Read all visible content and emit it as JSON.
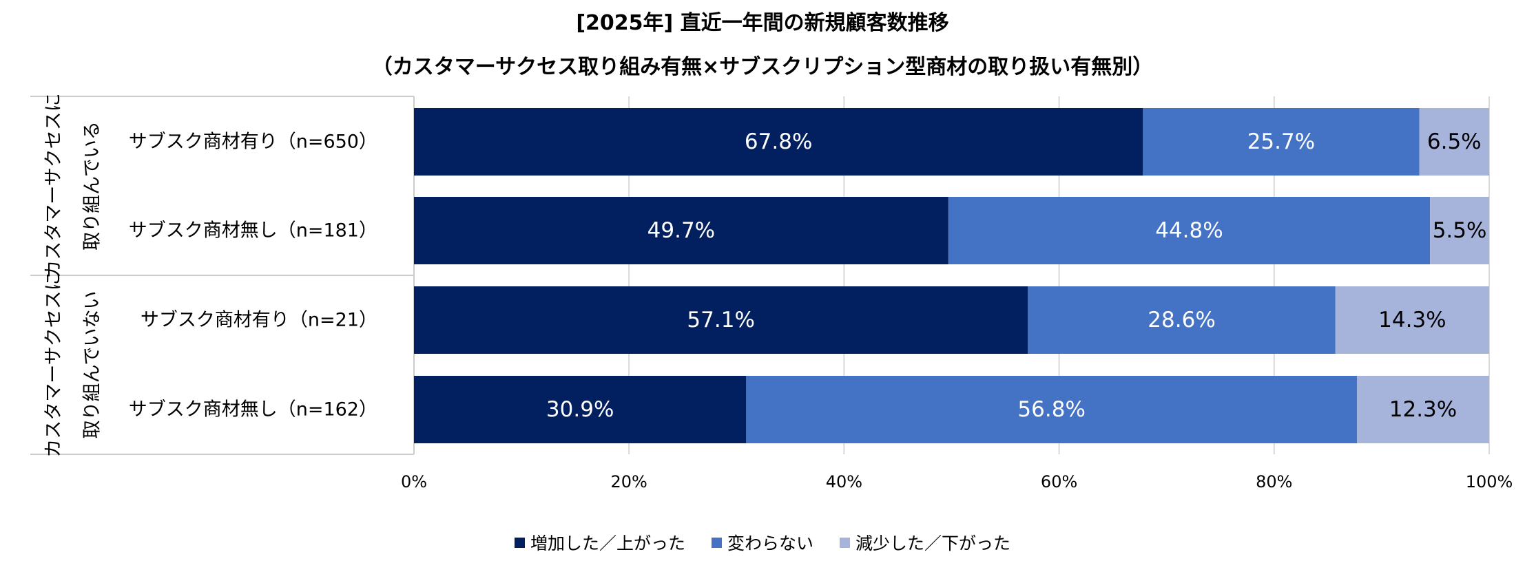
{
  "colors": {
    "increase": "#02205f",
    "same": "#4472c4",
    "decrease": "#a6b4dc",
    "grid": "#d9d9d9",
    "frame": "#cccccc"
  },
  "chart_data": {
    "type": "bar",
    "orientation": "horizontal",
    "stacked": true,
    "title": "[2025年] 直近一年間の新規顧客数推移",
    "subtitle": "（カスタマーサクセス取り組み有無×サブスクリプション型商材の取り扱い有無別）",
    "groups": [
      {
        "label": "カスタマーサクセスに取り組んでいる",
        "lines": [
          "カスタマーサクセスに",
          "取り組んでいる"
        ]
      },
      {
        "label": "カスタマーサクセスに取り組んでいない",
        "lines": [
          "カスタマーサクセスに",
          "取り組んでいない"
        ]
      }
    ],
    "categories": [
      "サブスク商材有り（n=650）",
      "サブスク商材無し（n=181）",
      "サブスク商材有り（n=21）",
      "サブスク商材無し（n=162）"
    ],
    "category_group": [
      0,
      0,
      1,
      1
    ],
    "series": [
      {
        "name": "増加した／上がった",
        "values": [
          67.8,
          49.7,
          57.1,
          30.9
        ],
        "labels": [
          "67.8%",
          "49.7%",
          "57.1%",
          "30.9%"
        ]
      },
      {
        "name": "変わらない",
        "values": [
          25.7,
          44.8,
          28.6,
          56.8
        ],
        "labels": [
          "25.7%",
          "44.8%",
          "28.6%",
          "56.8%"
        ]
      },
      {
        "name": "減少した／下がった",
        "values": [
          6.5,
          5.5,
          14.3,
          12.3
        ],
        "labels": [
          "6.5%",
          "5.5%",
          "14.3%",
          "12.3%"
        ]
      }
    ],
    "xlim": [
      0,
      100
    ],
    "xticks": [
      0,
      20,
      40,
      60,
      80,
      100
    ],
    "xtick_labels": [
      "0%",
      "20%",
      "40%",
      "60%",
      "80%",
      "100%"
    ],
    "grid": true,
    "legend": "bottom"
  }
}
